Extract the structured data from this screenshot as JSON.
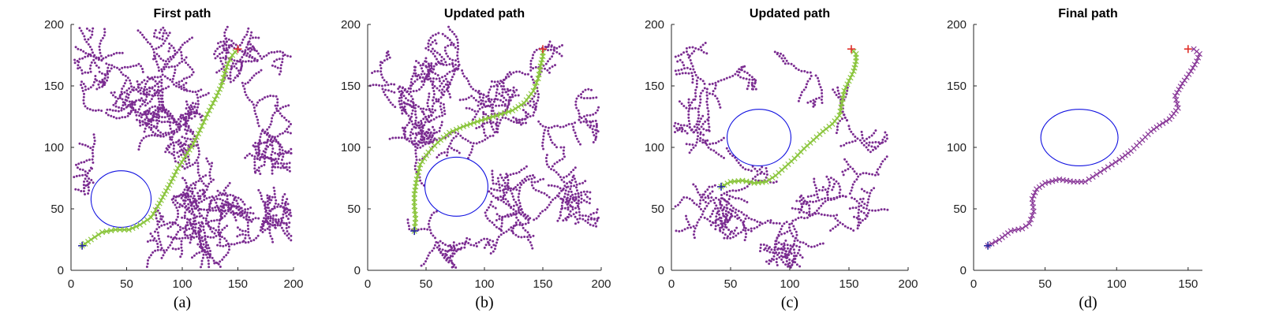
{
  "figure": {
    "colors": {
      "tree": "#7B2C91",
      "path": "#8CC63F",
      "start_marker": "#2A2AA0",
      "goal_marker": "#E0302A",
      "obstacle": "#1010E0",
      "final_path": "#8B3B9A",
      "axis": "#262626"
    }
  },
  "chart_data": [
    {
      "type": "scatter",
      "title": "First path",
      "caption": "(a)",
      "xlim": [
        0,
        200
      ],
      "ylim": [
        0,
        200
      ],
      "xticks": [
        "0",
        "50",
        "100",
        "150",
        "200"
      ],
      "yticks": [
        "0",
        "50",
        "100",
        "150",
        "200"
      ],
      "grid": false,
      "obstacle": {
        "shape": "ellipse",
        "cx": 45,
        "cy": 58,
        "rx": 27,
        "ry": 23
      },
      "start": [
        10,
        20
      ],
      "goal": [
        150,
        180
      ],
      "tree_shown": true,
      "path_style": "green x markers over tree",
      "path": [
        [
          10,
          20
        ],
        [
          18,
          25
        ],
        [
          28,
          31
        ],
        [
          40,
          33
        ],
        [
          52,
          33
        ],
        [
          62,
          37
        ],
        [
          72,
          43
        ],
        [
          78,
          52
        ],
        [
          84,
          62
        ],
        [
          90,
          72
        ],
        [
          96,
          83
        ],
        [
          103,
          93
        ],
        [
          110,
          103
        ],
        [
          116,
          114
        ],
        [
          121,
          124
        ],
        [
          126,
          133
        ],
        [
          131,
          142
        ],
        [
          135,
          150
        ],
        [
          138,
          160
        ],
        [
          141,
          168
        ],
        [
          145,
          175
        ],
        [
          150,
          180
        ]
      ]
    },
    {
      "type": "scatter",
      "title": "Updated path",
      "caption": "(b)",
      "xlim": [
        0,
        200
      ],
      "ylim": [
        0,
        200
      ],
      "xticks": [
        "0",
        "50",
        "100",
        "150",
        "200"
      ],
      "yticks": [
        "0",
        "50",
        "100",
        "150",
        "200"
      ],
      "grid": false,
      "obstacle": {
        "shape": "ellipse",
        "cx": 76,
        "cy": 68,
        "rx": 27,
        "ry": 24
      },
      "start": [
        40,
        32
      ],
      "goal": [
        150,
        180
      ],
      "tree_shown": true,
      "path_style": "green x markers over tree",
      "path": [
        [
          40,
          32
        ],
        [
          41,
          42
        ],
        [
          40,
          52
        ],
        [
          40,
          62
        ],
        [
          42,
          74
        ],
        [
          45,
          86
        ],
        [
          52,
          96
        ],
        [
          60,
          104
        ],
        [
          70,
          112
        ],
        [
          82,
          117
        ],
        [
          94,
          121
        ],
        [
          104,
          124
        ],
        [
          114,
          127
        ],
        [
          124,
          130
        ],
        [
          134,
          136
        ],
        [
          142,
          146
        ],
        [
          146,
          156
        ],
        [
          148,
          166
        ],
        [
          150,
          174
        ],
        [
          150,
          180
        ]
      ]
    },
    {
      "type": "scatter",
      "title": "Updated path",
      "caption": "(c)",
      "xlim": [
        0,
        200
      ],
      "ylim": [
        0,
        200
      ],
      "xticks": [
        "0",
        "50",
        "100",
        "150",
        "200"
      ],
      "yticks": [
        "0",
        "50",
        "100",
        "150",
        "200"
      ],
      "grid": false,
      "obstacle": {
        "shape": "ellipse",
        "cx": 74,
        "cy": 108,
        "rx": 27,
        "ry": 23
      },
      "start": [
        42,
        68
      ],
      "goal": [
        152,
        180
      ],
      "tree_shown": true,
      "path_style": "green x markers over tree",
      "path": [
        [
          42,
          68
        ],
        [
          50,
          72
        ],
        [
          60,
          73
        ],
        [
          70,
          71
        ],
        [
          80,
          72
        ],
        [
          88,
          77
        ],
        [
          96,
          84
        ],
        [
          104,
          91
        ],
        [
          112,
          99
        ],
        [
          120,
          106
        ],
        [
          128,
          113
        ],
        [
          136,
          119
        ],
        [
          142,
          126
        ],
        [
          144,
          136
        ],
        [
          146,
          146
        ],
        [
          150,
          154
        ],
        [
          154,
          162
        ],
        [
          156,
          170
        ],
        [
          156,
          176
        ],
        [
          152,
          180
        ]
      ]
    },
    {
      "type": "line",
      "title": "Final path",
      "caption": "(d)",
      "xlim": [
        0,
        160
      ],
      "ylim": [
        0,
        200
      ],
      "xticks": [
        "0",
        "50",
        "100",
        "150"
      ],
      "yticks": [
        "0",
        "50",
        "100",
        "150",
        "200"
      ],
      "grid": false,
      "obstacle": {
        "shape": "ellipse",
        "cx": 74,
        "cy": 108,
        "rx": 27,
        "ry": 23
      },
      "start": [
        10,
        20
      ],
      "goal": [
        150,
        180
      ],
      "tree_shown": false,
      "path_style": "purple x markers",
      "path": [
        [
          10,
          20
        ],
        [
          18,
          25
        ],
        [
          26,
          32
        ],
        [
          34,
          34
        ],
        [
          39,
          38
        ],
        [
          42,
          48
        ],
        [
          41,
          58
        ],
        [
          44,
          66
        ],
        [
          50,
          71
        ],
        [
          60,
          74
        ],
        [
          70,
          72
        ],
        [
          78,
          72
        ],
        [
          86,
          78
        ],
        [
          94,
          84
        ],
        [
          102,
          90
        ],
        [
          110,
          97
        ],
        [
          118,
          106
        ],
        [
          124,
          113
        ],
        [
          130,
          118
        ],
        [
          137,
          123
        ],
        [
          143,
          132
        ],
        [
          141,
          142
        ],
        [
          146,
          152
        ],
        [
          152,
          162
        ],
        [
          156,
          170
        ],
        [
          158,
          176
        ],
        [
          154,
          180
        ],
        [
          150,
          180
        ]
      ]
    }
  ]
}
